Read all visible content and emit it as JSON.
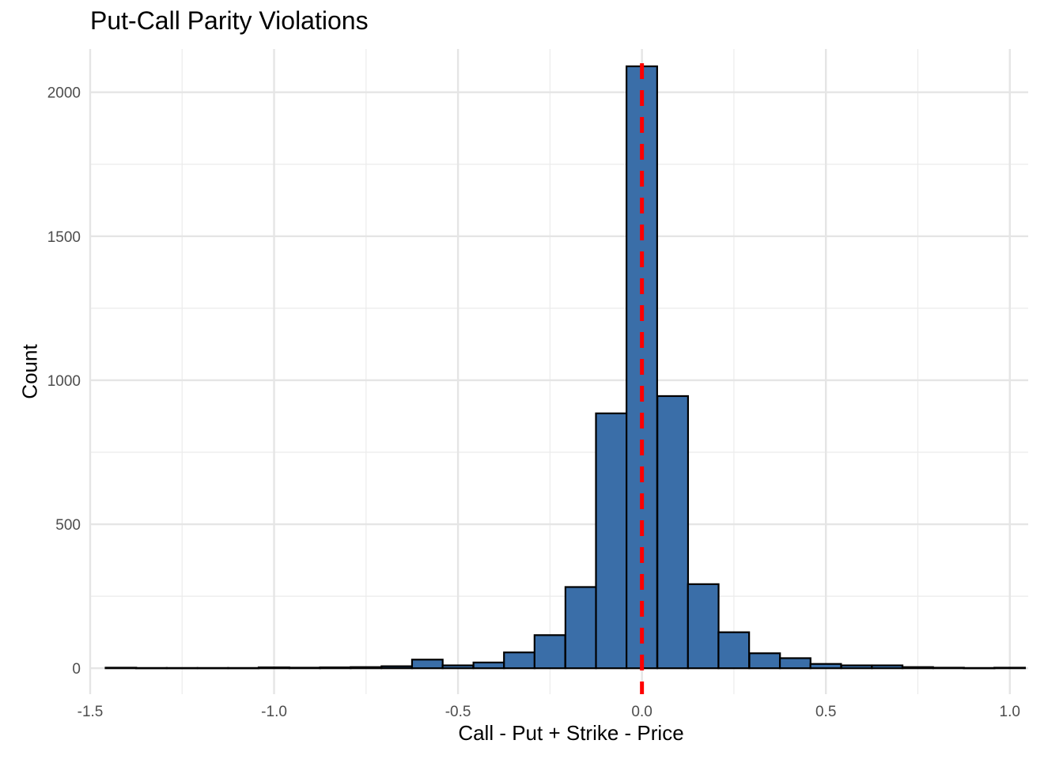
{
  "chart_data": {
    "type": "bar",
    "title": "Put-Call Parity Violations",
    "xlabel": "Call - Put + Strike - Price",
    "ylabel": "Count",
    "xlim": [
      -1.5,
      1.05
    ],
    "ylim": [
      -90,
      2150
    ],
    "x_ticks": [
      -1.5,
      -1.0,
      -0.5,
      0.0,
      0.5,
      1.0
    ],
    "x_tick_labels": [
      "-1.5",
      "-1.0",
      "-0.5",
      "0.0",
      "0.5",
      "1.0"
    ],
    "y_ticks": [
      0,
      500,
      1000,
      1500,
      2000
    ],
    "y_tick_labels": [
      "0",
      "500",
      "1000",
      "1500",
      "2000"
    ],
    "bin_width": 0.0833,
    "bins_start": [
      -1.458,
      -1.375,
      -1.292,
      -1.208,
      -1.125,
      -1.042,
      -0.958,
      -0.875,
      -0.792,
      -0.708,
      -0.625,
      -0.542,
      -0.458,
      -0.375,
      -0.292,
      -0.208,
      -0.125,
      -0.042,
      0.042,
      0.125,
      0.208,
      0.292,
      0.375,
      0.458,
      0.542,
      0.625,
      0.708,
      0.792,
      0.875,
      0.958
    ],
    "counts": [
      2,
      1,
      1,
      1,
      1,
      3,
      2,
      3,
      4,
      7,
      30,
      10,
      20,
      55,
      115,
      282,
      885,
      2090,
      945,
      292,
      125,
      52,
      35,
      15,
      10,
      10,
      4,
      2,
      1,
      2
    ],
    "reference_line": {
      "x": 0.0,
      "color": "#ff0000",
      "style": "dashed"
    },
    "bar_fill": "#3a6ea8",
    "bar_stroke": "#000000",
    "grid": true,
    "legend": false
  }
}
